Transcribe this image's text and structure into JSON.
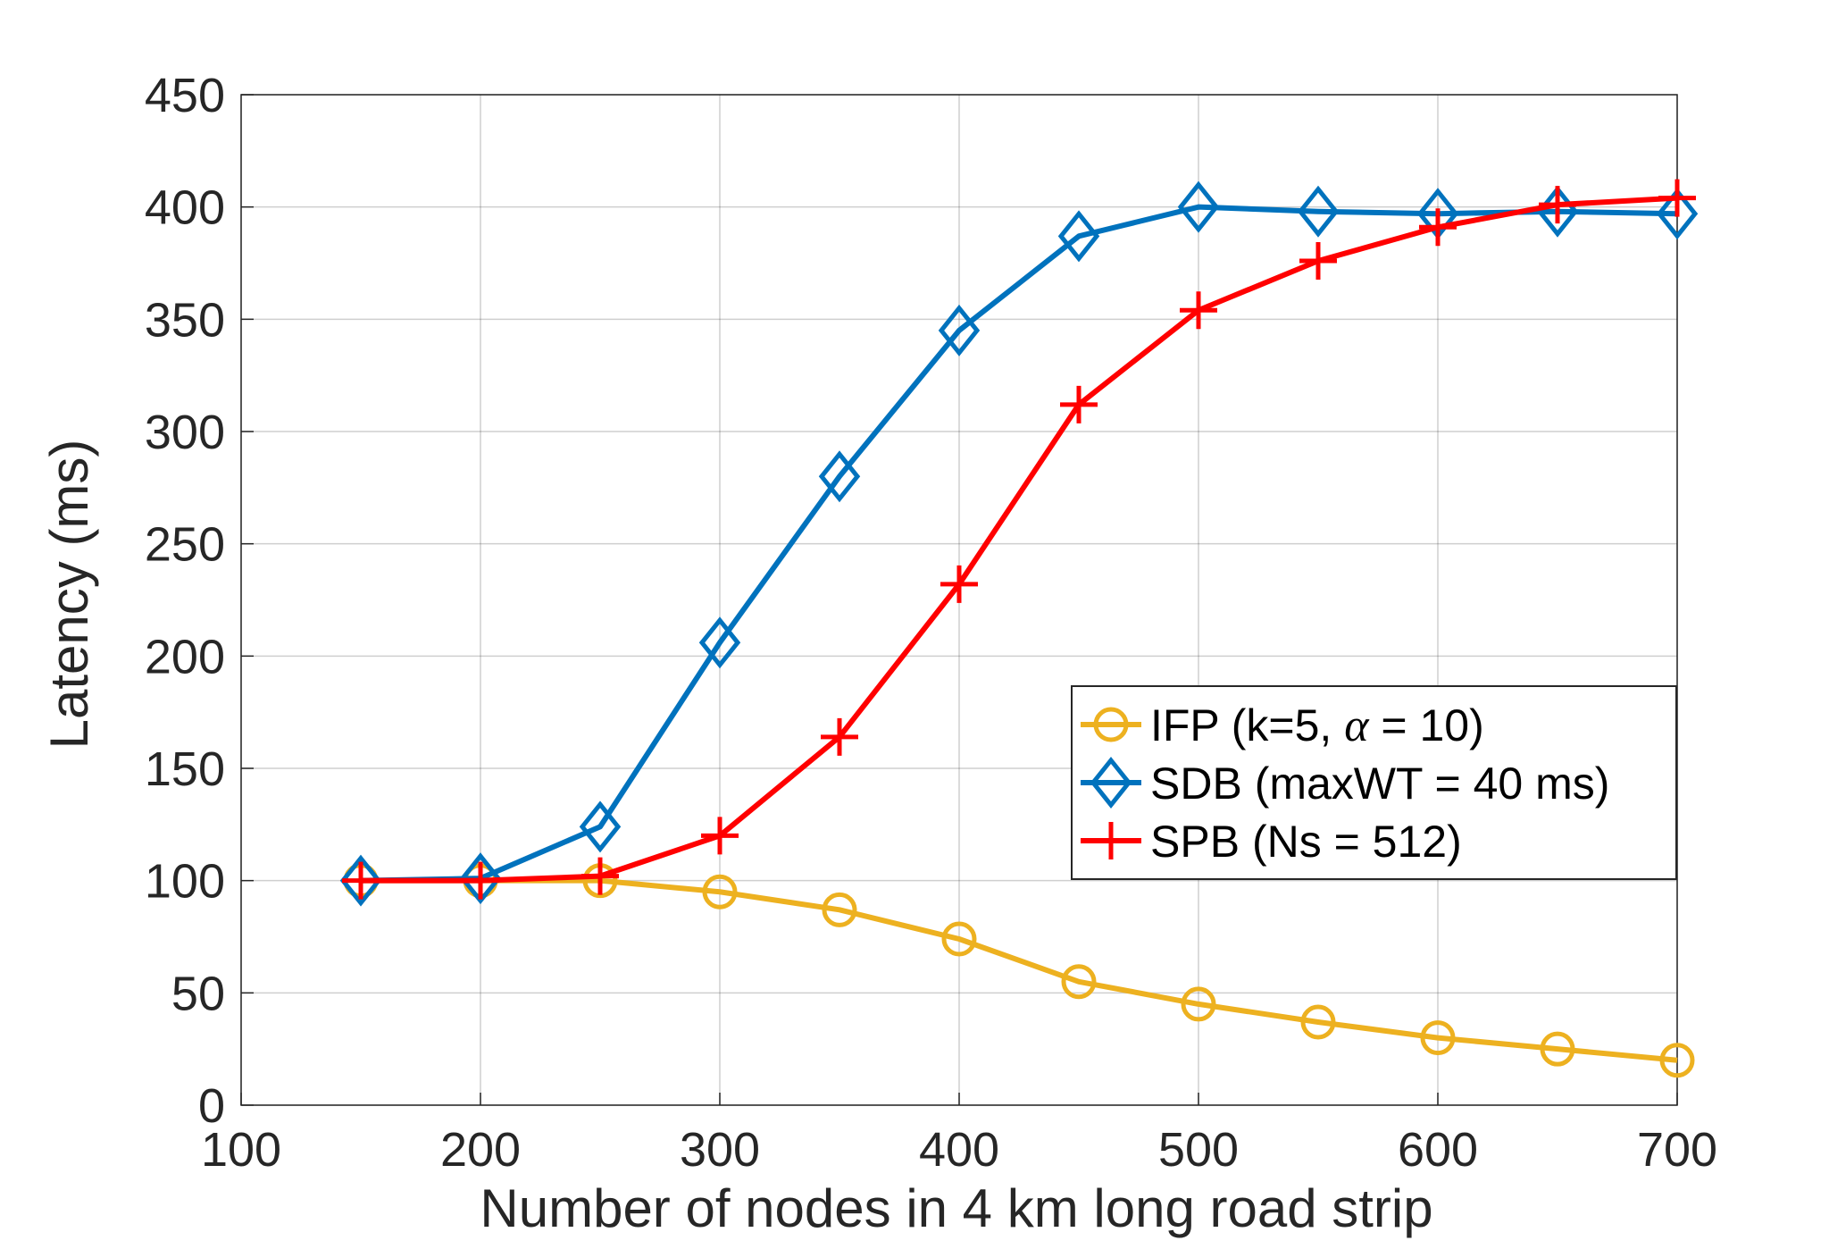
{
  "chart_data": {
    "type": "line",
    "xlabel": "Number of nodes in 4 km long road strip",
    "ylabel": "Latency (ms)",
    "xlim": [
      100,
      700
    ],
    "ylim": [
      0,
      450
    ],
    "xticks": [
      100,
      200,
      300,
      400,
      500,
      600,
      700
    ],
    "yticks": [
      0,
      50,
      100,
      150,
      200,
      250,
      300,
      350,
      400,
      450
    ],
    "grid": true,
    "legend_position": "center-right",
    "x": [
      150,
      200,
      250,
      300,
      350,
      400,
      450,
      500,
      550,
      600,
      650,
      700
    ],
    "series": [
      {
        "name": "IFP (k=5, α = 10)",
        "legend_parts": {
          "before": "IFP (k=5, ",
          "symbol": "α",
          "after": " = 10)"
        },
        "color": "#EDB120",
        "marker": "circle",
        "values": [
          100,
          100,
          100,
          95,
          87,
          74,
          55,
          45,
          37,
          30,
          25,
          20
        ]
      },
      {
        "name": "SDB (maxWT = 40 ms)",
        "color": "#0072BD",
        "marker": "diamond",
        "values": [
          100,
          101,
          124,
          206,
          280,
          345,
          387,
          400,
          398,
          397,
          398,
          397
        ]
      },
      {
        "name": "SPB (Ns = 512)",
        "color": "#FF0000",
        "marker": "plus",
        "values": [
          100,
          100,
          102,
          120,
          164,
          232,
          312,
          354,
          376,
          391,
          401,
          404
        ]
      }
    ]
  }
}
